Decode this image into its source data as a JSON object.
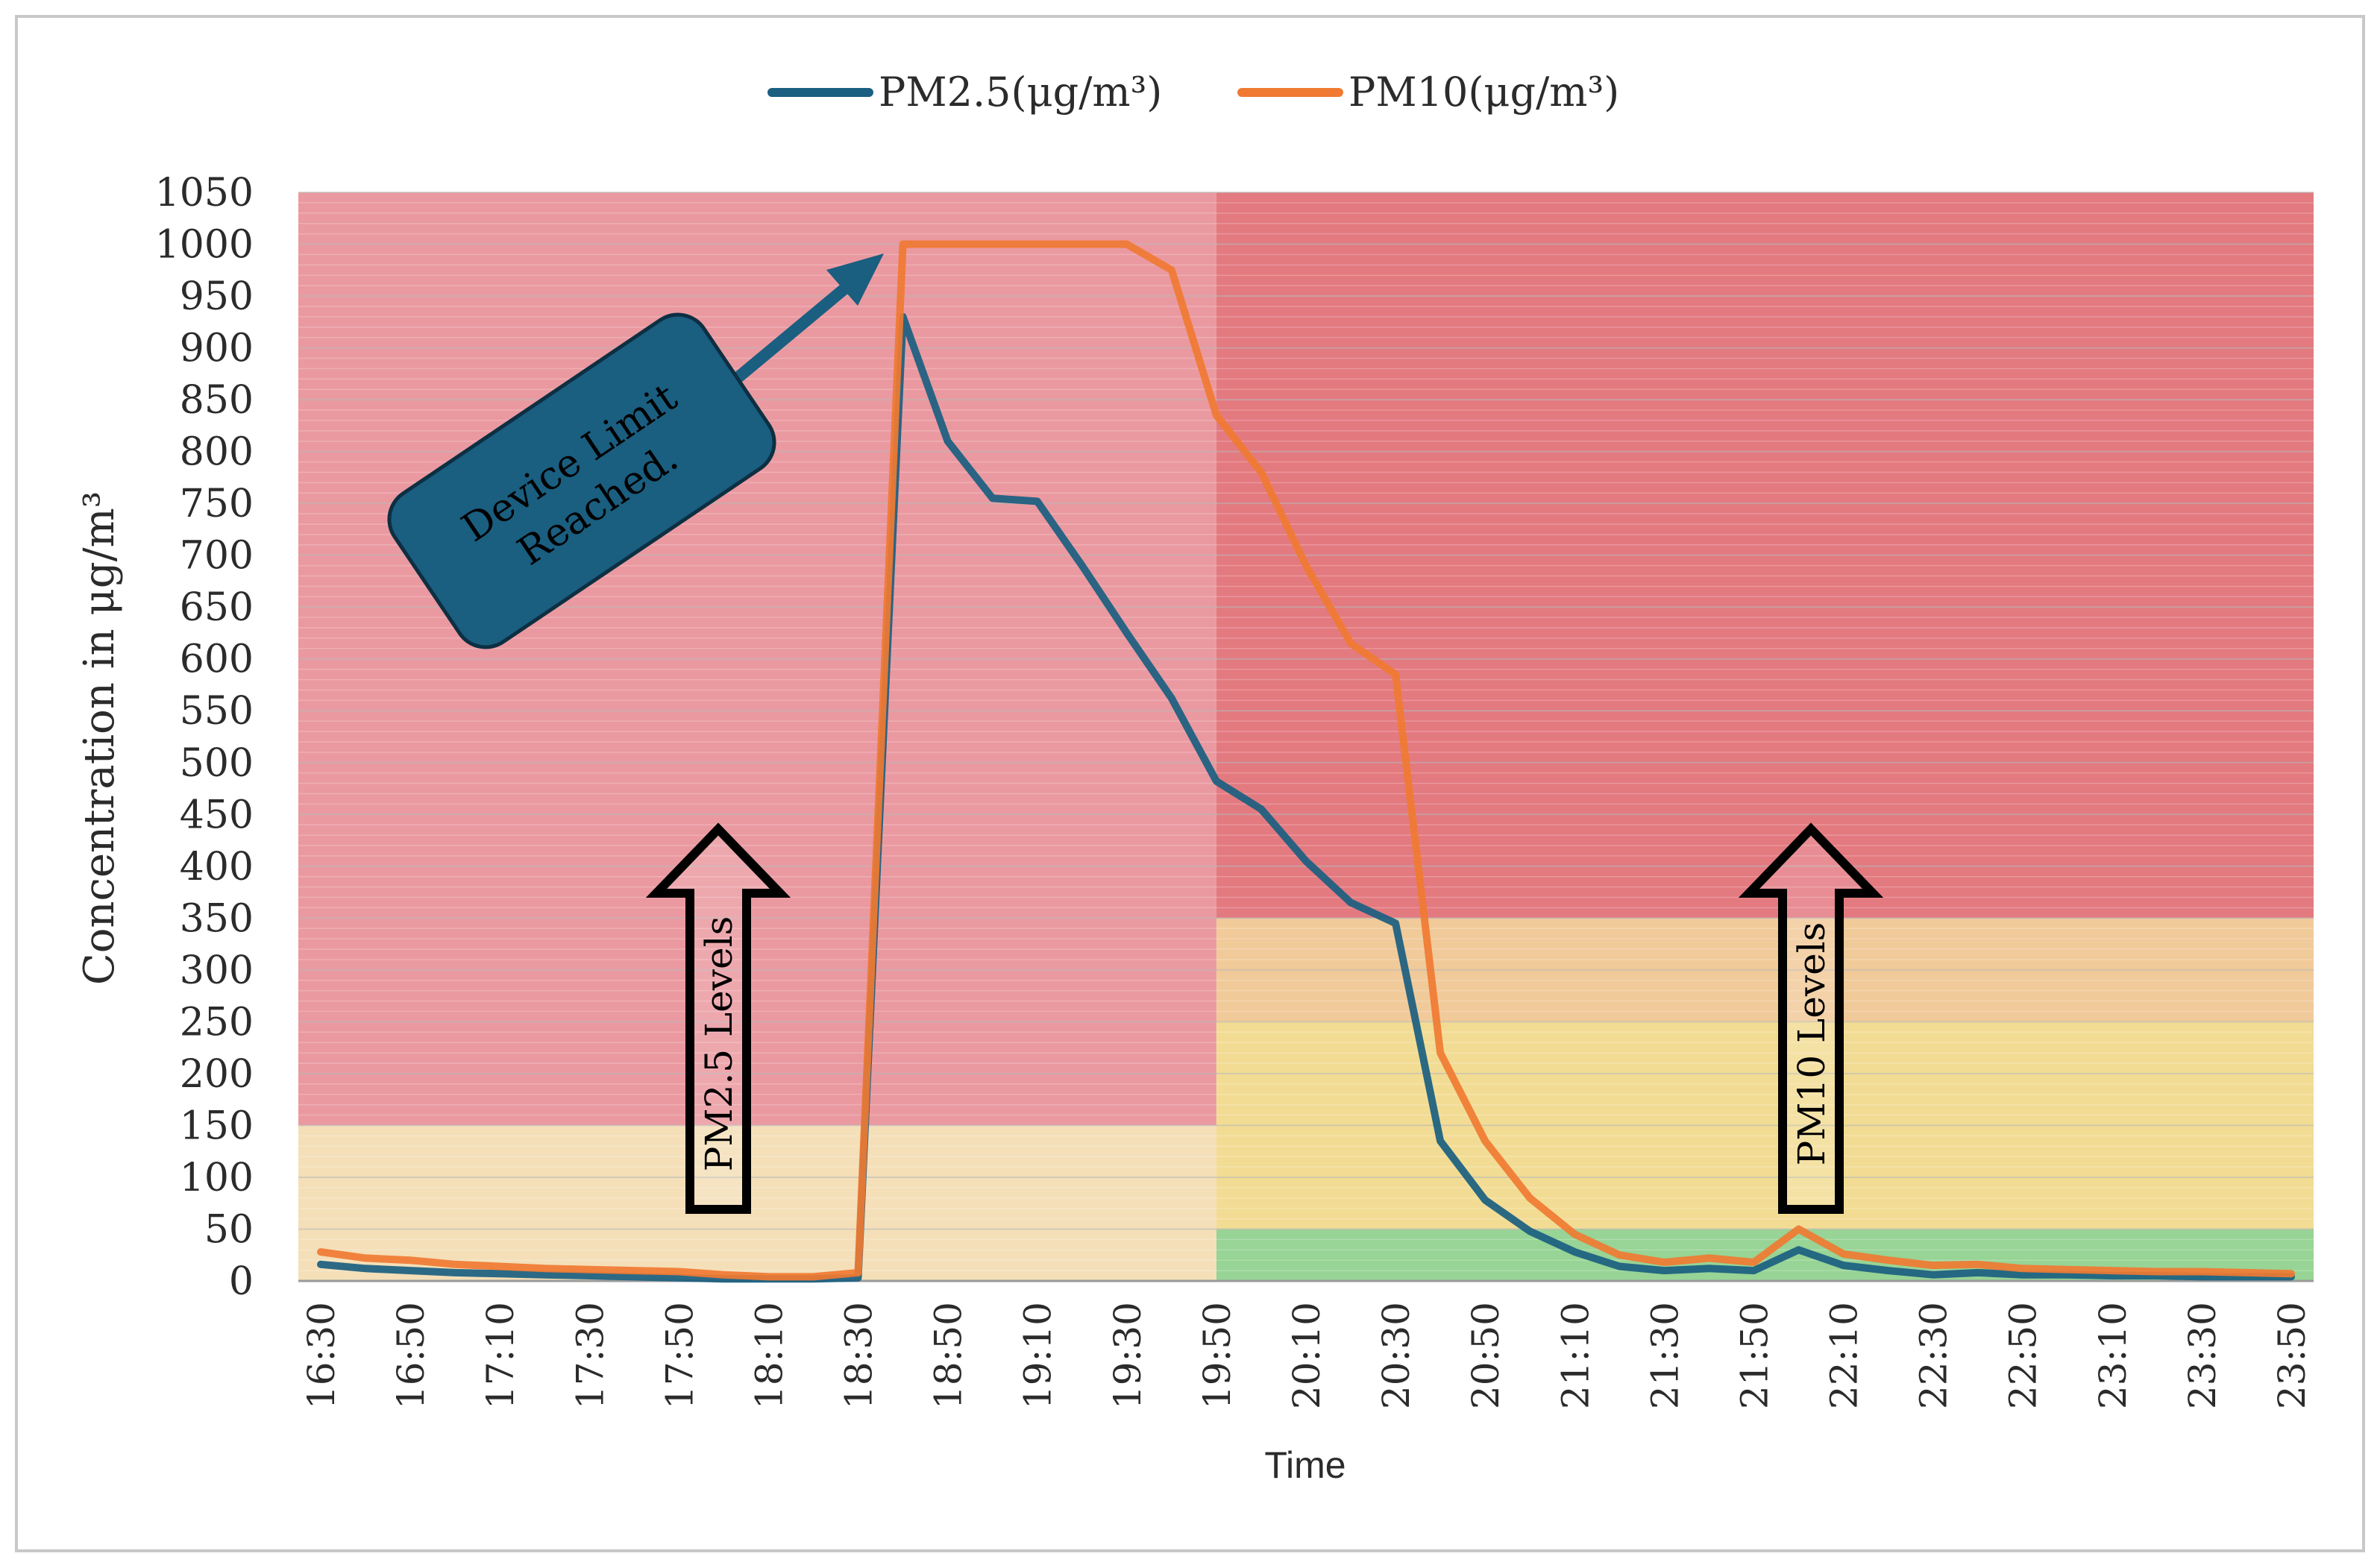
{
  "chart_data": {
    "type": "line",
    "ylabel": "Concentration in μg/m³",
    "xlabel": "Time",
    "ylim": [
      0,
      1050
    ],
    "y_ticks": [
      0,
      50,
      100,
      150,
      200,
      250,
      300,
      350,
      400,
      450,
      500,
      550,
      600,
      650,
      700,
      750,
      800,
      850,
      900,
      950,
      1000,
      1050
    ],
    "x": [
      "16:30",
      "16:40",
      "16:50",
      "17:00",
      "17:10",
      "17:20",
      "17:30",
      "17:40",
      "17:50",
      "18:00",
      "18:10",
      "18:20",
      "18:30",
      "18:40",
      "18:50",
      "19:00",
      "19:10",
      "19:20",
      "19:30",
      "19:40",
      "19:50",
      "20:00",
      "20:10",
      "20:20",
      "20:30",
      "20:40",
      "20:50",
      "21:00",
      "21:10",
      "21:20",
      "21:30",
      "21:40",
      "21:50",
      "22:00",
      "22:10",
      "22:20",
      "22:30",
      "22:40",
      "22:50",
      "23:00",
      "23:10",
      "23:20",
      "23:30",
      "23:40",
      "23:50"
    ],
    "x_tick_labels": [
      "16:30",
      "16:50",
      "17:10",
      "17:30",
      "17:50",
      "18:10",
      "18:30",
      "18:50",
      "19:10",
      "19:30",
      "19:50",
      "20:10",
      "20:30",
      "20:50",
      "21:10",
      "21:30",
      "21:50",
      "22:10",
      "22:30",
      "22:50",
      "23:10",
      "23:30",
      "23:50"
    ],
    "series": [
      {
        "name": "PM2.5(μg/m³)",
        "color": "#1a5e80",
        "values": [
          16,
          12,
          10,
          8,
          7,
          6,
          5,
          4,
          3,
          2,
          2,
          2,
          3,
          930,
          810,
          755,
          752,
          690,
          625,
          562,
          482,
          455,
          405,
          365,
          345,
          135,
          78,
          48,
          28,
          14,
          10,
          12,
          10,
          30,
          15,
          10,
          6,
          8,
          6,
          6,
          5,
          5,
          4,
          4,
          4
        ]
      },
      {
        "name": "PM10(μg/m³)",
        "color": "#f07a32",
        "values": [
          28,
          22,
          20,
          16,
          14,
          12,
          11,
          10,
          9,
          6,
          4,
          4,
          8,
          1000,
          1000,
          1000,
          1000,
          1000,
          1000,
          975,
          835,
          780,
          690,
          615,
          585,
          220,
          135,
          80,
          45,
          25,
          18,
          22,
          18,
          50,
          26,
          20,
          15,
          16,
          12,
          11,
          10,
          9,
          9,
          8,
          7
        ]
      }
    ],
    "legend": {
      "placement": "top-center"
    },
    "grid": true,
    "background_bands": [
      {
        "region": "left",
        "x_from": "16:30",
        "x_to": "19:50",
        "y_from": 150,
        "y_to": 1050,
        "color": "#e88e96"
      },
      {
        "region": "left",
        "x_from": "16:30",
        "x_to": "19:50",
        "y_from": 0,
        "y_to": 150,
        "color": "#f3dcb0"
      },
      {
        "region": "right",
        "x_from": "19:50",
        "x_to": "23:50",
        "y_from": 350,
        "y_to": 1050,
        "color": "#e06b72"
      },
      {
        "region": "right",
        "x_from": "19:50",
        "x_to": "23:50",
        "y_from": 250,
        "y_to": 350,
        "color": "#efc48f"
      },
      {
        "region": "right",
        "x_from": "19:50",
        "x_to": "23:50",
        "y_from": 50,
        "y_to": 250,
        "color": "#f1d888"
      },
      {
        "region": "right",
        "x_from": "19:50",
        "x_to": "23:50",
        "y_from": 0,
        "y_to": 50,
        "color": "#8ccf89"
      }
    ],
    "annotations": {
      "callout": {
        "text_line1": "Device Limit",
        "text_line2": "Reached.",
        "points_to": {
          "x": "18:40",
          "y": 1000
        }
      },
      "pm25_label": {
        "text": "PM2.5 Levels",
        "x": "18:00",
        "y": 200
      },
      "pm10_label": {
        "text": "PM10 Levels",
        "x": "22:00",
        "y": 200
      }
    }
  }
}
